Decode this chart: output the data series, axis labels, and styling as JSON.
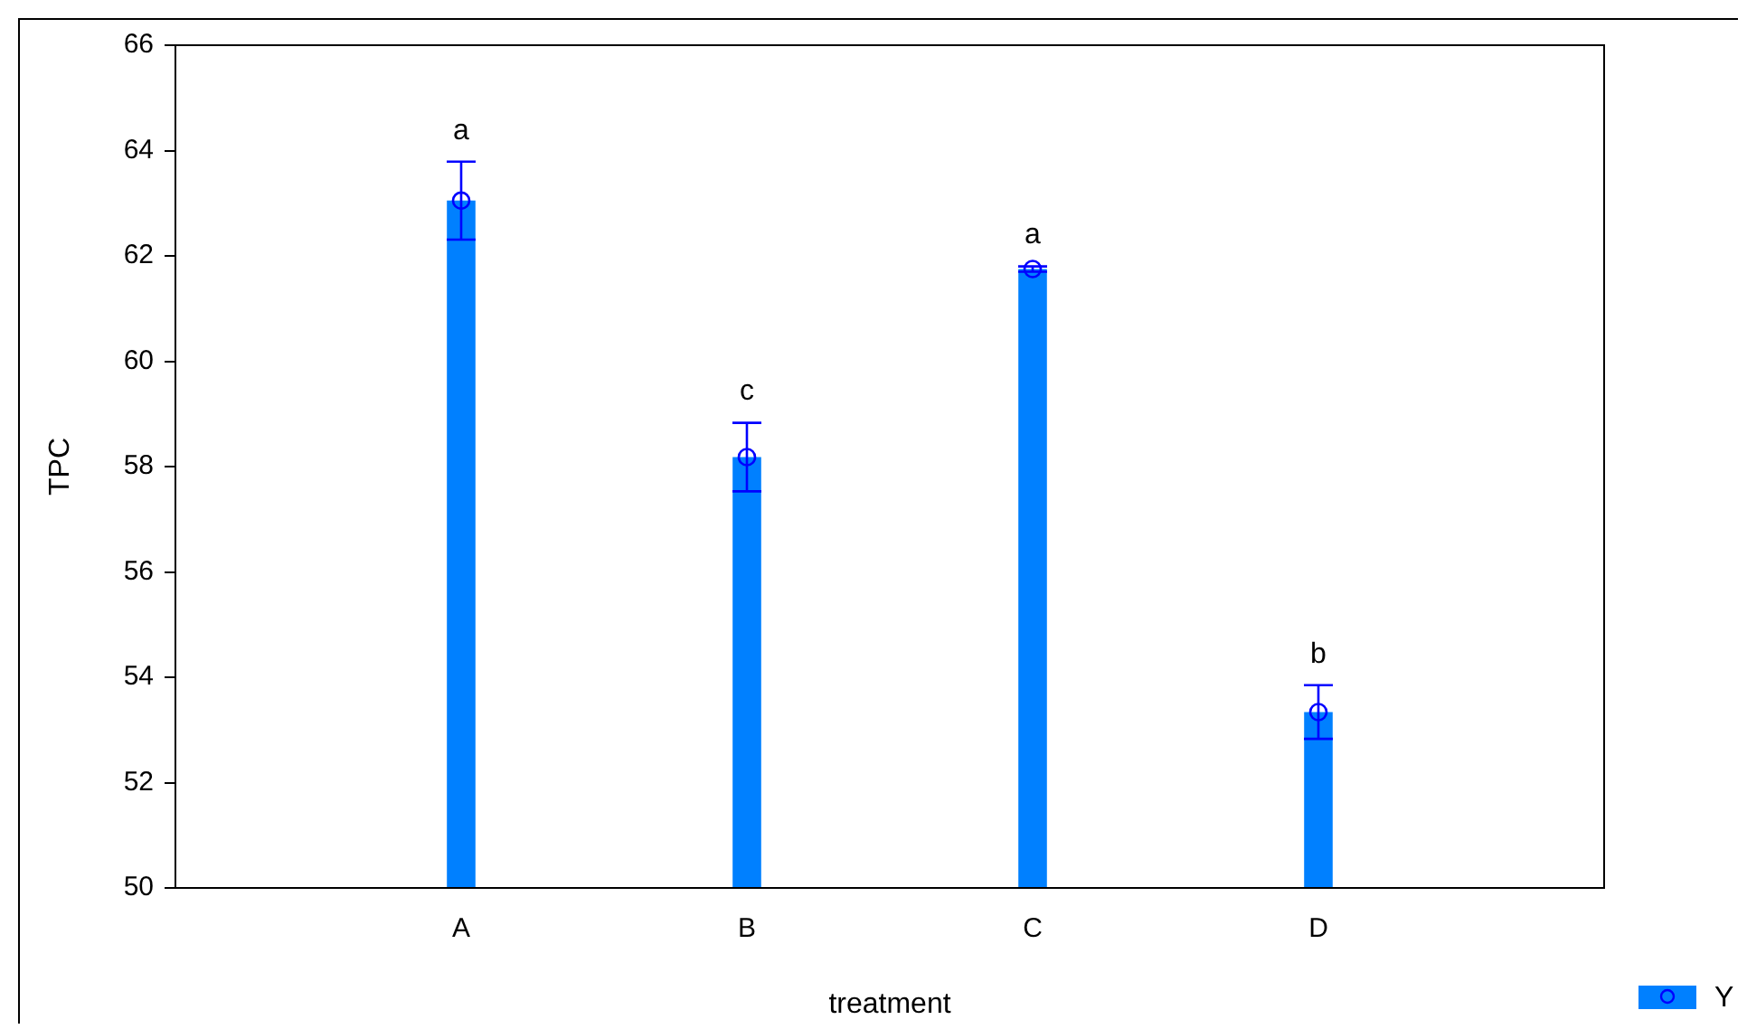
{
  "chart_data": {
    "type": "bar",
    "xlabel": "treatment",
    "ylabel": "TPC",
    "categories": [
      "A",
      "B",
      "C",
      "D"
    ],
    "series": [
      {
        "name": "Y",
        "color": "#0080ff",
        "values": [
          63.05,
          58.18,
          61.75,
          53.34
        ]
      },
      {
        "type": "scatter",
        "x": [
          "A",
          "B",
          "C",
          "D"
        ],
        "color": "#0000ff",
        "values": [
          63.05,
          58.18,
          61.75,
          53.34
        ],
        "errors": [
          0.74,
          0.65,
          0.05,
          0.51
        ]
      }
    ],
    "ylim": [
      50,
      66
    ],
    "yticks": [
      50,
      52,
      54,
      56,
      58,
      60,
      62,
      64,
      66
    ],
    "marker": "circle",
    "legend": "bottom right",
    "annotations": [
      "a",
      "c",
      "a",
      "b"
    ]
  }
}
